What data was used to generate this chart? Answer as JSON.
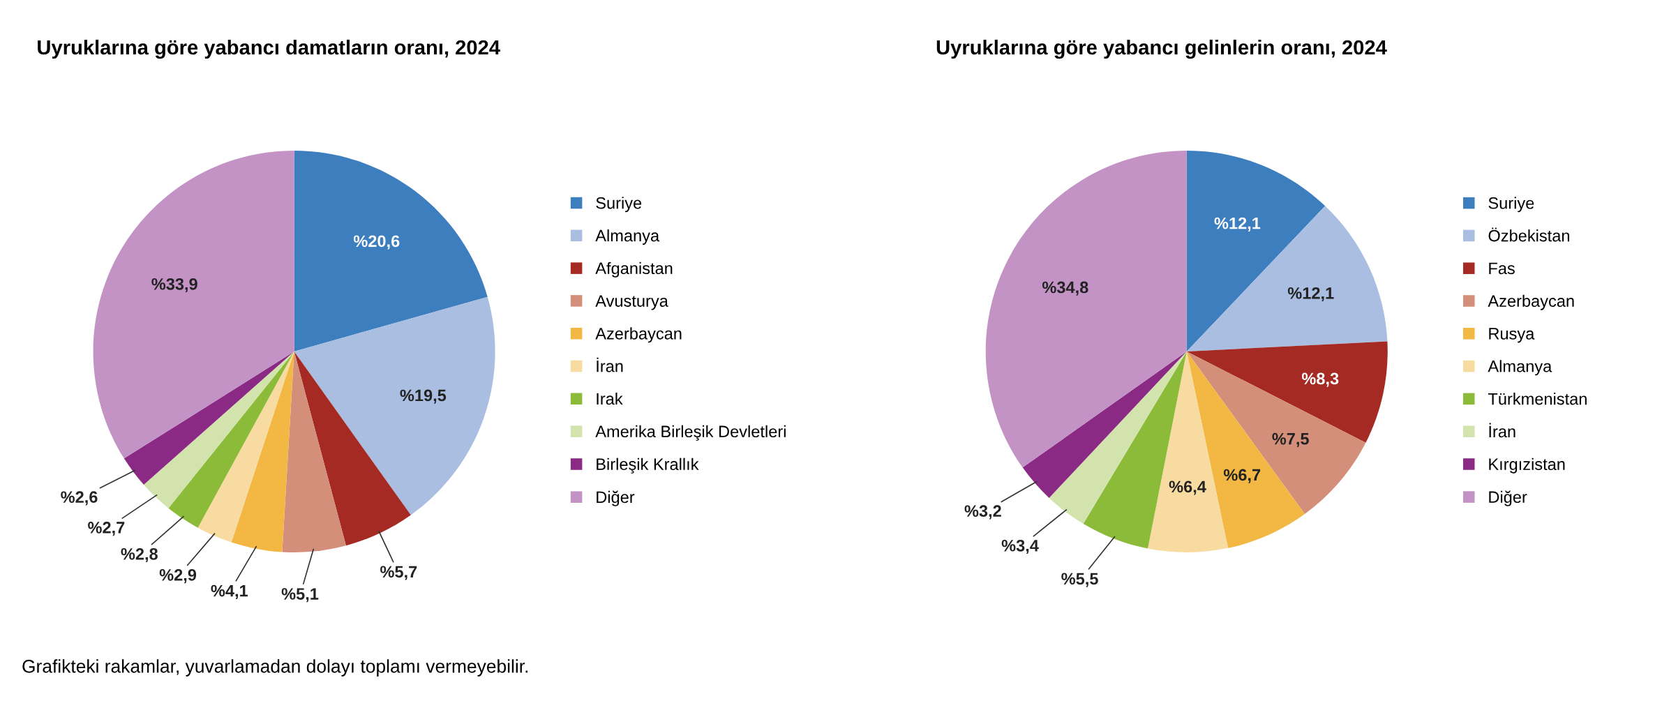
{
  "chart_data": [
    {
      "type": "pie",
      "title": "Uyruklarına göre yabancı damatların oranı, 2024",
      "categories": [
        "Suriye",
        "Almanya",
        "Afganistan",
        "Avusturya",
        "Azerbaycan",
        "İran",
        "Irak",
        "Amerika Birleşik Devletleri",
        "Birleşik Krallık",
        "Diğer"
      ],
      "values": [
        20.6,
        19.5,
        5.7,
        5.1,
        4.1,
        2.9,
        2.8,
        2.7,
        2.6,
        33.9
      ],
      "colors": [
        "#3d7ebf",
        "#a9bee0",
        "#a52a24",
        "#d48f7a",
        "#f2b843",
        "#f8dba0",
        "#8cbb3a",
        "#d3e3ad",
        "#8a2a84",
        "#c293c4"
      ],
      "value_labels": [
        "%20,6",
        "%19,5",
        "%5,7",
        "%5,1",
        "%4,1",
        "%2,9",
        "%2,8",
        "%2,7",
        "%2,6",
        "%33,9"
      ],
      "legend": "right",
      "annotations": [
        "Grafikteki rakamlar, yuvarlamadan dolayı toplamı vermeyebilir."
      ]
    },
    {
      "type": "pie",
      "title": "Uyruklarına göre yabancı gelinlerin oranı, 2024",
      "categories": [
        "Suriye",
        "Özbekistan",
        "Fas",
        "Azerbaycan",
        "Rusya",
        "Almanya",
        "Türkmenistan",
        "İran",
        "Kırgızistan",
        "Diğer"
      ],
      "values": [
        12.1,
        12.1,
        8.3,
        7.5,
        6.7,
        6.4,
        5.5,
        3.4,
        3.2,
        34.8
      ],
      "colors": [
        "#3d7ebf",
        "#a9bee0",
        "#a52a24",
        "#d48f7a",
        "#f2b843",
        "#f8dba0",
        "#8cbb3a",
        "#d3e3ad",
        "#8a2a84",
        "#c293c4"
      ],
      "value_labels": [
        "%12,1",
        "%12,1",
        "%8,3",
        "%7,5",
        "%6,7",
        "%6,4",
        "%5,5",
        "%3,4",
        "%3,2",
        "%34,8"
      ],
      "legend": "right"
    }
  ]
}
